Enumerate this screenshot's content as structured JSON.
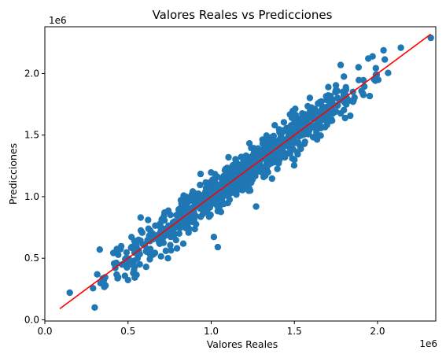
{
  "chart_data": {
    "type": "scatter",
    "title": "Valores Reales vs Predicciones",
    "xlabel": "Valores Reales",
    "ylabel": "Predicciones",
    "x_offset_label": "1e6",
    "y_offset_label": "1e6",
    "xlim": [
      0.0,
      2.35
    ],
    "ylim": [
      -0.01,
      2.38
    ],
    "xticks": [
      0.0,
      0.5,
      1.0,
      1.5,
      2.0
    ],
    "yticks": [
      0.0,
      0.5,
      1.0,
      1.5,
      2.0
    ],
    "xtick_labels": [
      "0.0",
      "0.5",
      "1.0",
      "1.5",
      "2.0"
    ],
    "ytick_labels": [
      "0.0",
      "0.5",
      "1.0",
      "1.5",
      "2.0"
    ],
    "grid": false,
    "scatter_color": "#1f77b4",
    "line_color": "#ff0000",
    "reference_line": {
      "x": [
        0.09,
        2.32
      ],
      "y": [
        0.09,
        2.32
      ]
    },
    "outliers": [
      {
        "x": 0.15,
        "y": 0.22
      },
      {
        "x": 0.3,
        "y": 0.1
      },
      {
        "x": 0.33,
        "y": 0.57
      },
      {
        "x": 2.32,
        "y": 2.29
      },
      {
        "x": 2.14,
        "y": 2.21
      },
      {
        "x": 1.99,
        "y": 1.99
      },
      {
        "x": 1.04,
        "y": 0.59
      },
      {
        "x": 1.27,
        "y": 0.92
      },
      {
        "x": 0.74,
        "y": 0.5
      }
    ],
    "cloud": {
      "n_points": 900,
      "x_range": [
        0.27,
        2.1
      ],
      "slope": 1.0,
      "intercept": 0.0,
      "residual_sd": 0.085
    }
  }
}
